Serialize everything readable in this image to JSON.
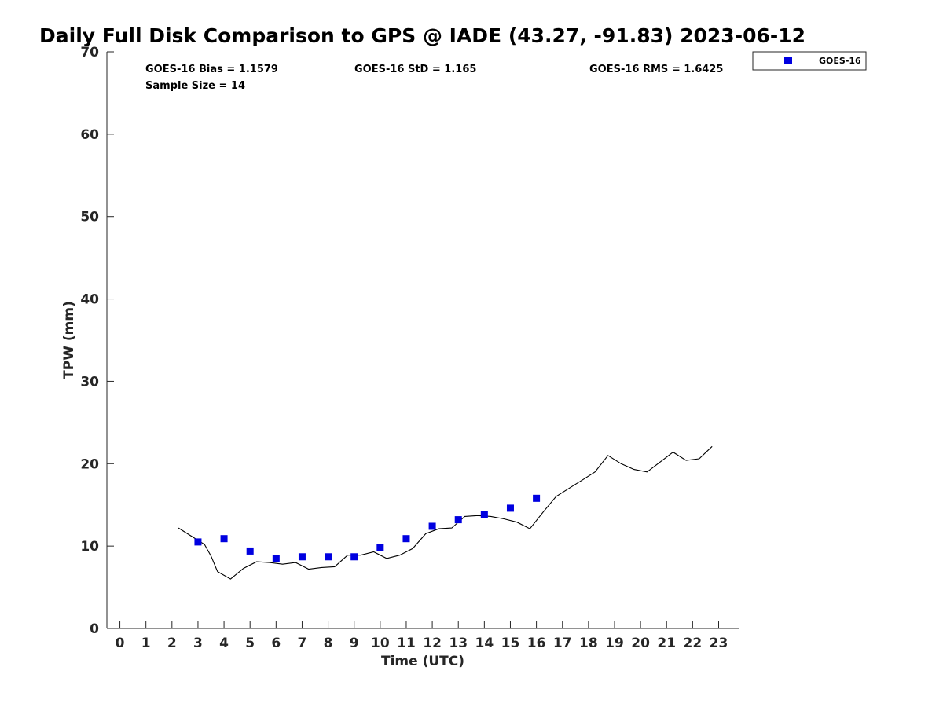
{
  "chart_data": {
    "type": "scatter",
    "title": "Daily Full Disk Comparison to GPS @ IADE (43.27, -91.83) 2023-06-12",
    "xlabel": "Time (UTC)",
    "ylabel": "TPW (mm)",
    "xlim": [
      -0.5,
      23.8
    ],
    "ylim": [
      0,
      70
    ],
    "xticks": [
      "0",
      "1",
      "2",
      "3",
      "4",
      "5",
      "6",
      "7",
      "8",
      "9",
      "10",
      "11",
      "12",
      "13",
      "14",
      "15",
      "16",
      "17",
      "18",
      "19",
      "20",
      "21",
      "22",
      "23"
    ],
    "yticks": [
      "0",
      "10",
      "20",
      "30",
      "40",
      "50",
      "60",
      "70"
    ],
    "grid": false,
    "legend_position": "top-right outside plot",
    "stats": {
      "bias": "GOES-16 Bias = 1.1579",
      "std": "GOES-16 StD = 1.165",
      "rms": "GOES-16 RMS = 1.6425",
      "sample": "Sample Size = 14"
    },
    "series": [
      {
        "name": "GOES-16",
        "kind": "scatter",
        "marker": "square",
        "color": "#0000e0",
        "x": [
          3,
          4,
          5,
          6,
          7,
          8,
          9,
          10,
          11,
          12,
          13,
          14,
          15,
          16
        ],
        "y": [
          10.5,
          10.9,
          9.4,
          8.5,
          8.7,
          8.7,
          8.7,
          9.8,
          10.9,
          12.4,
          13.2,
          13.8,
          14.6,
          15.8
        ]
      },
      {
        "kind": "line",
        "color": "#000000",
        "x": [
          2.25,
          2.75,
          3.25,
          3.5,
          3.75,
          4.25,
          4.75,
          5.25,
          5.75,
          6.25,
          6.75,
          7.25,
          7.75,
          8.25,
          8.75,
          9.25,
          9.75,
          10.25,
          10.75,
          11.25,
          11.75,
          12.25,
          12.75,
          13.25,
          13.75,
          14.25,
          14.75,
          15.25,
          15.75,
          16.25,
          16.75,
          17.25,
          17.75,
          18.25,
          18.75,
          19.25,
          19.75,
          20.25,
          20.75,
          21.25,
          21.75,
          22.25,
          22.75
        ],
        "y": [
          12.2,
          11.2,
          10.2,
          8.8,
          6.9,
          6.0,
          7.3,
          8.1,
          8.0,
          7.8,
          8.0,
          7.2,
          7.4,
          7.5,
          8.9,
          8.9,
          9.3,
          8.5,
          8.9,
          9.7,
          11.5,
          12.1,
          12.2,
          13.6,
          13.7,
          13.6,
          13.3,
          12.9,
          12.1,
          14.1,
          16.0,
          17.0,
          18.0,
          19.0,
          21.0,
          20.0,
          19.3,
          19.0,
          20.2,
          21.4,
          20.4,
          20.6,
          22.1
        ]
      }
    ]
  }
}
